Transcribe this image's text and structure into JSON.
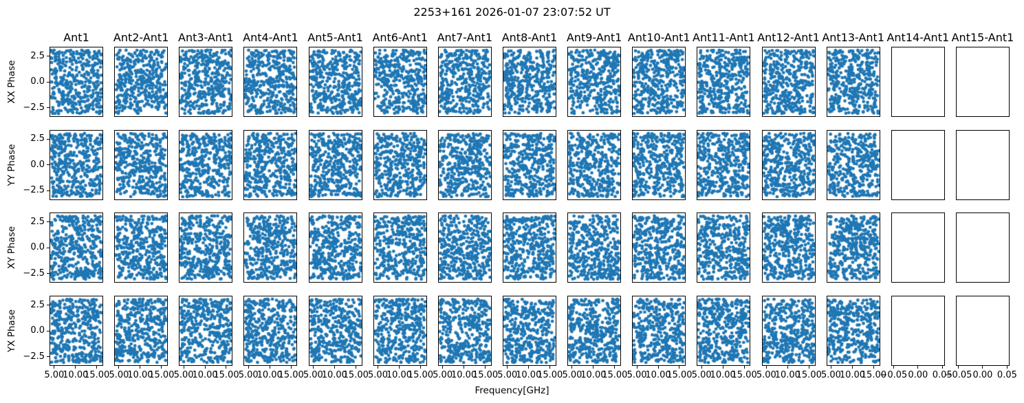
{
  "figure": {
    "title": "2253+161 2026-01-07 23:07:52 UT",
    "xlabel": "Frequency[GHz]"
  },
  "chart_data": {
    "type": "scatter",
    "layout": "grid of 4 rows x 15 columns of phase-vs-frequency scatter panels, shared axes",
    "suptitle": "2253+161 2026-01-07 23:07:52 UT",
    "xlabel": "Frequency[GHz]",
    "row_labels": [
      "XX Phase",
      "YY Phase",
      "XY Phase",
      "YX Phase"
    ],
    "col_titles": [
      "Ant1",
      "Ant2-Ant1",
      "Ant3-Ant1",
      "Ant4-Ant1",
      "Ant5-Ant1",
      "Ant6-Ant1",
      "Ant7-Ant1",
      "Ant8-Ant1",
      "Ant9-Ant1",
      "Ant10-Ant1",
      "Ant11-Ant1",
      "Ant12-Ant1",
      "Ant13-Ant1",
      "Ant14-Ant1",
      "Ant15-Ant1"
    ],
    "empty_cols": [
      13,
      14
    ],
    "y_ticks": {
      "values": [
        2.5,
        0.0,
        -2.5
      ],
      "labels": [
        "2.5",
        "0.0",
        "−2.5"
      ],
      "lim": [
        -3.4,
        3.4
      ]
    },
    "x_ticks": {
      "values": [
        5,
        10,
        15
      ],
      "labels": [
        "5.00",
        "10.00",
        "15.00"
      ],
      "lim": [
        3.9,
        16.5
      ]
    },
    "x_ticks_empty": {
      "values": [
        -0.05,
        0.0,
        0.05
      ],
      "labels": [
        "−0.05",
        "0.00",
        "0.05"
      ],
      "lim": [
        -0.055,
        0.055
      ]
    },
    "points": {
      "distribution": "uniform-random",
      "per_panel": 400,
      "x_range_ghz": [
        4.1,
        16.3
      ],
      "y_range_rad": [
        -3.1416,
        3.1416
      ],
      "color": "#1f77b4",
      "marker_radius": 2.4,
      "seed": 7
    },
    "grid_lines": false,
    "legend": null
  }
}
